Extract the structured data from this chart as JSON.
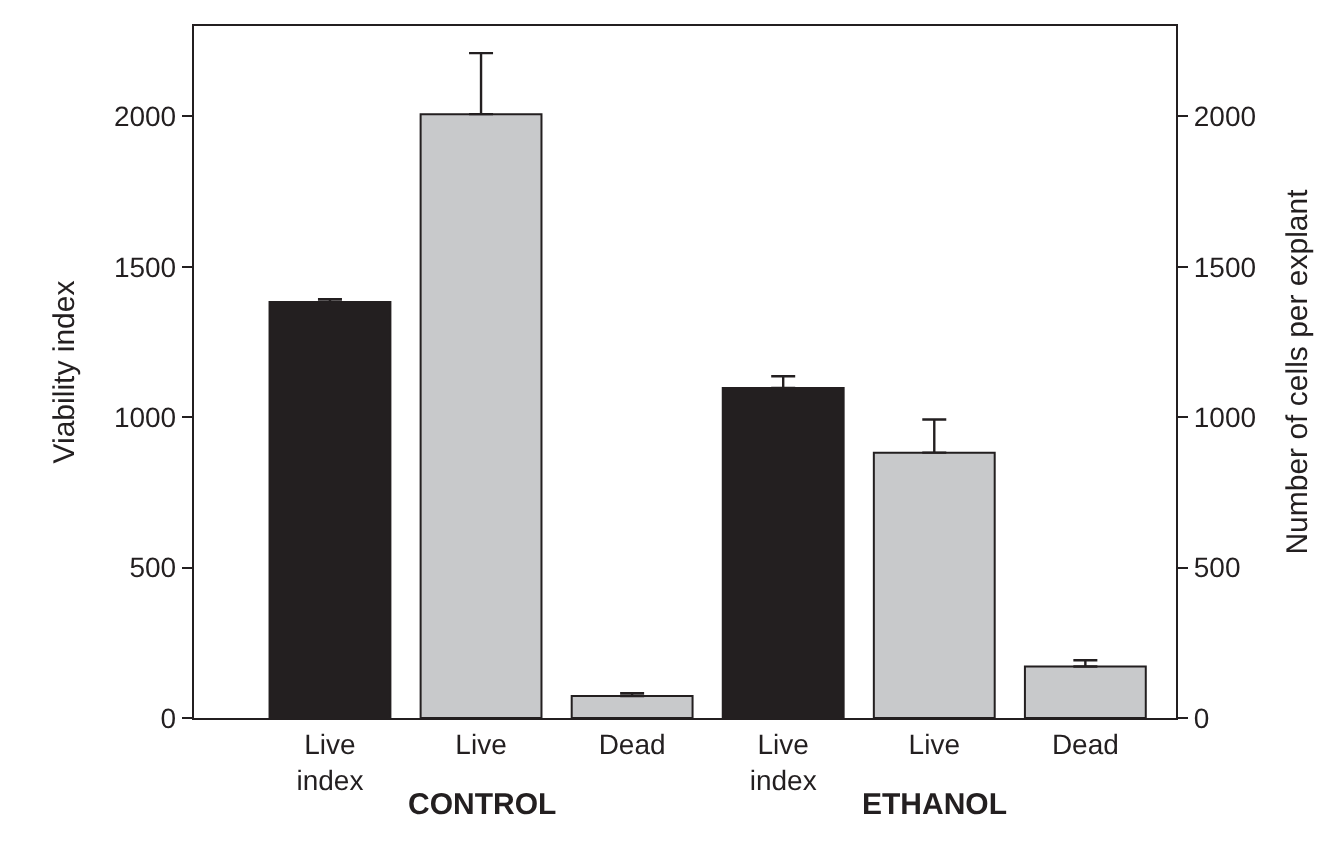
{
  "chart_data": {
    "type": "bar",
    "categories": [
      "Live index",
      "Live",
      "Dead",
      "Live index",
      "Live",
      "Dead"
    ],
    "ylabel": "Viability index",
    "y2label": "Number of cells per explant",
    "ylim": [
      0,
      2300
    ],
    "yticks": [
      0,
      500,
      1000,
      1500,
      2000
    ],
    "y2lim": [
      0,
      2300
    ],
    "y2ticks": [
      0,
      500,
      1000,
      1500,
      2000
    ],
    "series": [
      {
        "color": "#231f20",
        "values": [
          1383,
          null,
          null,
          1097,
          null,
          null
        ],
        "errors": [
          [
            1383,
            1392
          ],
          null,
          null,
          [
            1097,
            1136
          ],
          null,
          null
        ]
      },
      {
        "color": "#c8c9cb",
        "axis": "y2",
        "values": [
          null,
          2007,
          73,
          null,
          882,
          171
        ],
        "errors": [
          null,
          [
            2007,
            2210
          ],
          [
            73,
            82
          ],
          null,
          [
            882,
            992
          ],
          [
            171,
            192
          ]
        ]
      }
    ],
    "annotations": [
      "CONTROL",
      "ETHANOL"
    ]
  }
}
